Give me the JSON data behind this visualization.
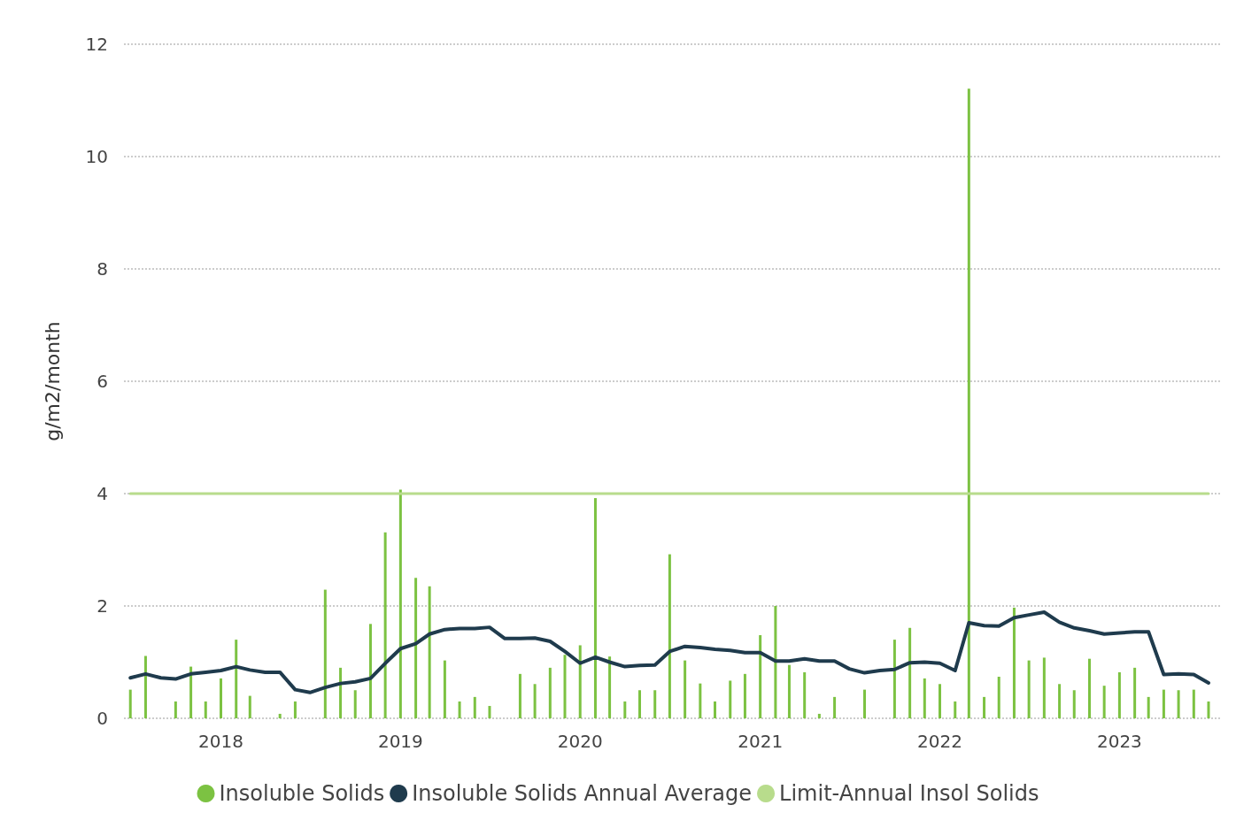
{
  "chart_data": {
    "type": "bar",
    "ylabel": "g/m2/month",
    "x": [
      "2017-07",
      "2017-08",
      "2017-09",
      "2017-10",
      "2017-11",
      "2017-12",
      "2018-01",
      "2018-02",
      "2018-03",
      "2018-04",
      "2018-05",
      "2018-06",
      "2018-07",
      "2018-08",
      "2018-09",
      "2018-10",
      "2018-11",
      "2018-12",
      "2019-01",
      "2019-02",
      "2019-03",
      "2019-04",
      "2019-05",
      "2019-06",
      "2019-07",
      "2019-08",
      "2019-09",
      "2019-10",
      "2019-11",
      "2019-12",
      "2020-01",
      "2020-02",
      "2020-03",
      "2020-04",
      "2020-05",
      "2020-06",
      "2020-07",
      "2020-08",
      "2020-09",
      "2020-10",
      "2020-11",
      "2020-12",
      "2021-01",
      "2021-02",
      "2021-03",
      "2021-04",
      "2021-05",
      "2021-06",
      "2021-07",
      "2021-08",
      "2021-09",
      "2021-10",
      "2021-11",
      "2021-12",
      "2022-01",
      "2022-02",
      "2022-03",
      "2022-04",
      "2022-05",
      "2022-06",
      "2022-07",
      "2022-08",
      "2022-09",
      "2022-10",
      "2022-11",
      "2022-12",
      "2023-01",
      "2023-02",
      "2023-03",
      "2023-04",
      "2023-05",
      "2023-06",
      "2023-07"
    ],
    "series": [
      {
        "name": "Insoluble Solids",
        "color": "#7cc242",
        "values": [
          0.51,
          1.11,
          null,
          0.3,
          0.92,
          0.3,
          0.71,
          1.4,
          0.4,
          null,
          0.08,
          0.3,
          null,
          2.29,
          0.9,
          0.5,
          1.68,
          3.31,
          4.07,
          2.5,
          2.35,
          1.03,
          0.3,
          0.38,
          0.22,
          null,
          0.79,
          0.61,
          0.9,
          1.13,
          1.3,
          3.92,
          1.1,
          0.3,
          0.5,
          0.5,
          2.92,
          1.03,
          0.62,
          0.3,
          0.67,
          0.79,
          1.48,
          2.0,
          0.95,
          0.82,
          0.08,
          0.38,
          null,
          0.51,
          null,
          1.4,
          1.61,
          0.71,
          0.61,
          0.3,
          11.21,
          0.38,
          0.74,
          1.97,
          1.03,
          1.08,
          0.61,
          0.5,
          1.06,
          0.58,
          0.82,
          0.9,
          0.38,
          0.51,
          0.5,
          0.51,
          0.3
        ]
      },
      {
        "name": "Insoluble Solids Annual Average",
        "type": "line",
        "color": "#1f3b4d",
        "values": [
          0.72,
          0.79,
          0.72,
          0.7,
          0.79,
          0.82,
          0.85,
          0.92,
          0.86,
          0.82,
          0.82,
          0.51,
          0.46,
          0.55,
          0.62,
          0.65,
          0.71,
          0.98,
          1.24,
          1.33,
          1.5,
          1.58,
          1.6,
          1.6,
          1.62,
          1.42,
          1.42,
          1.43,
          1.37,
          1.19,
          0.98,
          1.09,
          1.0,
          0.92,
          0.94,
          0.95,
          1.19,
          1.28,
          1.26,
          1.23,
          1.21,
          1.17,
          1.17,
          1.02,
          1.02,
          1.06,
          1.02,
          1.02,
          0.88,
          0.81,
          0.85,
          0.87,
          0.99,
          1.0,
          0.98,
          0.85,
          1.7,
          1.65,
          1.64,
          1.79,
          1.84,
          1.89,
          1.71,
          1.61,
          1.56,
          1.5,
          1.52,
          1.54,
          1.54,
          0.78,
          0.79,
          0.78,
          0.63
        ]
      },
      {
        "name": "Limit-Annual Insol Solids",
        "type": "line",
        "color": "#b8dc8c",
        "x": [
          "2017-07",
          "2023-07"
        ],
        "values": [
          4,
          4
        ]
      }
    ],
    "xlim": [
      "2017-06-18",
      "2023-07-28"
    ],
    "xticks": [
      "2018",
      "2019",
      "2020",
      "2021",
      "2022",
      "2023"
    ],
    "ylim": [
      0,
      12
    ],
    "yticks": [
      0,
      2,
      4,
      6,
      8,
      10,
      12
    ],
    "grid": "y",
    "legend": "bottom",
    "marker": "none"
  }
}
